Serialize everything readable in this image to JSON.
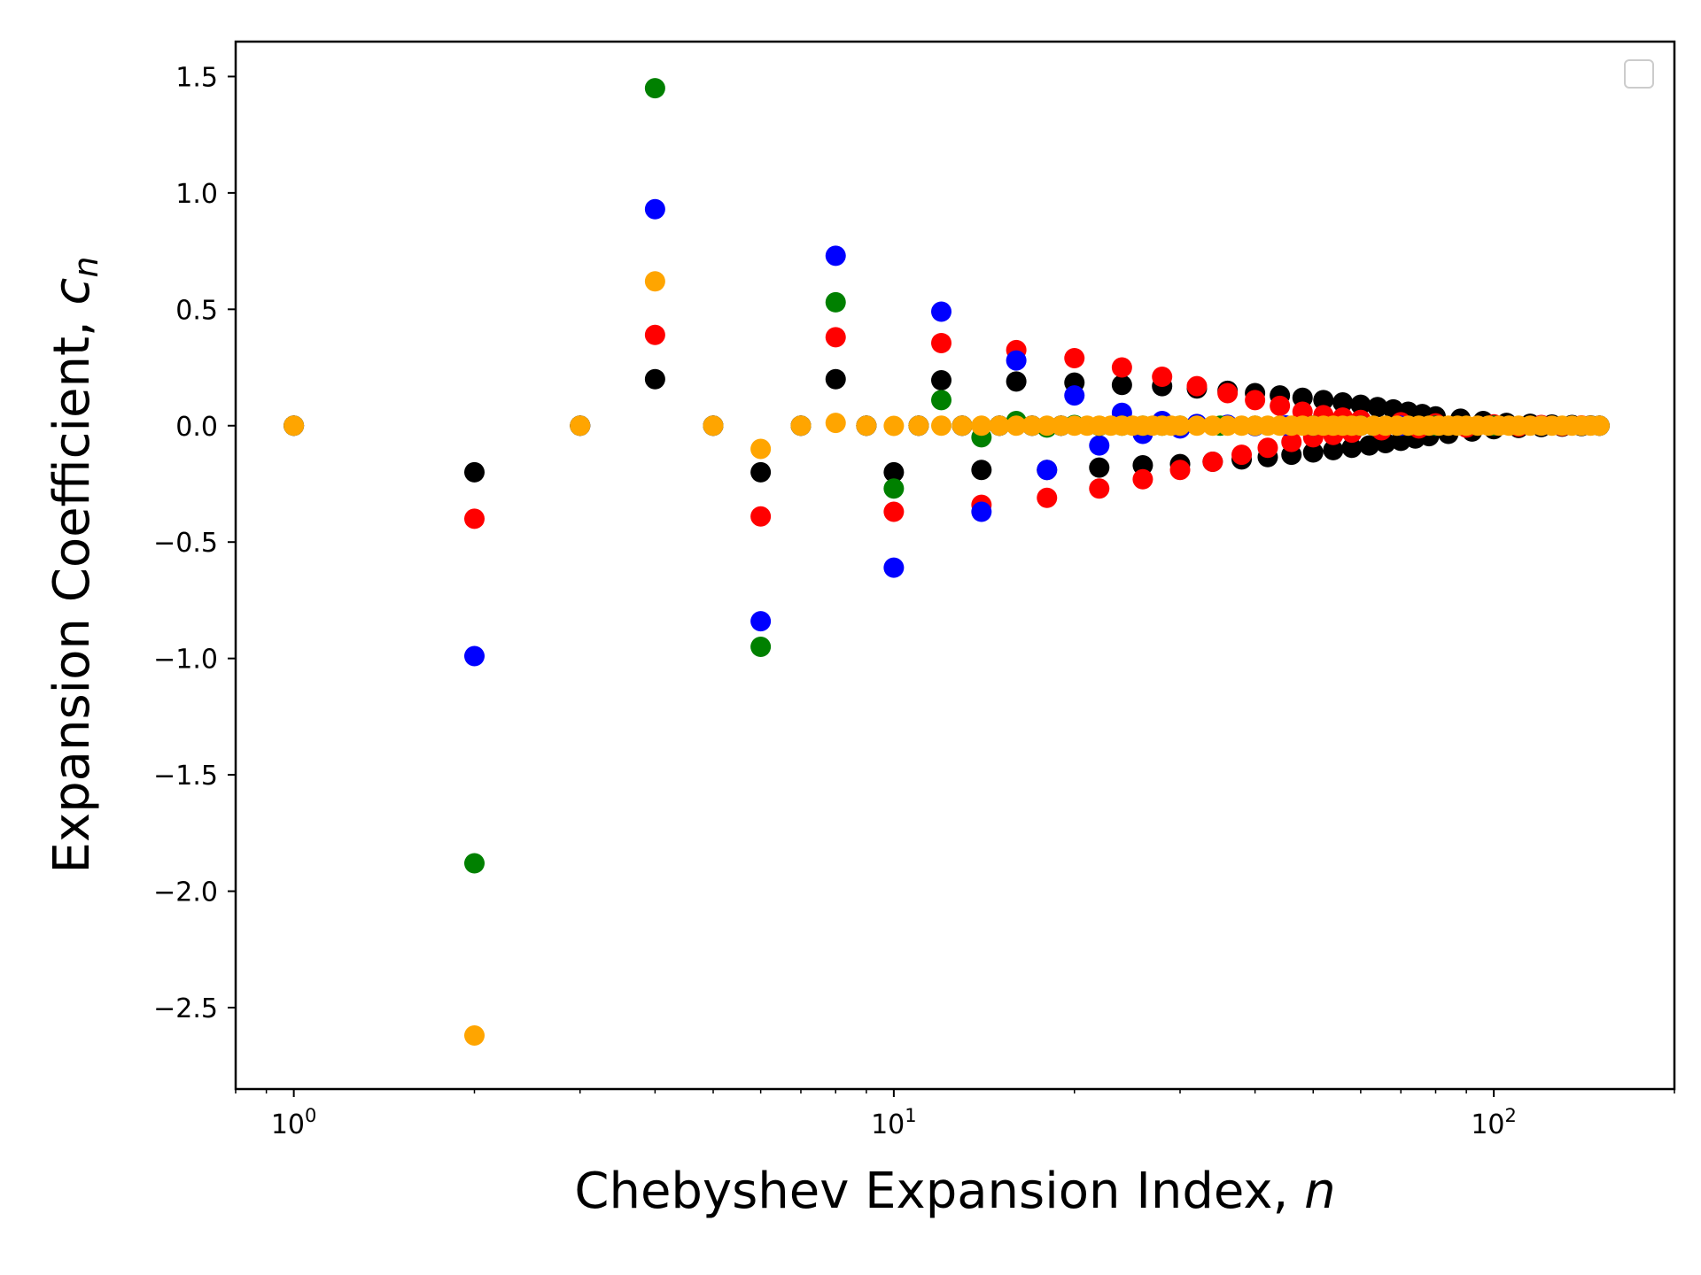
{
  "chart_data": {
    "type": "scatter",
    "title": "",
    "xlabel": "Chebyshev Expansion Index, ",
    "xlabel_var": "n",
    "ylabel": "Expansion Coefficient, ",
    "ylabel_var": "c",
    "ylabel_sub": "n",
    "xscale": "log",
    "xlim": [
      0.8,
      200
    ],
    "ylim": [
      -2.85,
      1.65
    ],
    "xticks": [
      {
        "value": 1,
        "base": "10",
        "exp": "0"
      },
      {
        "value": 10,
        "base": "10",
        "exp": "1"
      },
      {
        "value": 100,
        "base": "10",
        "exp": "2"
      }
    ],
    "yticks": [
      {
        "value": 1.5,
        "label": "1.5"
      },
      {
        "value": 1.0,
        "label": "1.0"
      },
      {
        "value": 0.5,
        "label": "0.5"
      },
      {
        "value": 0.0,
        "label": "0.0"
      },
      {
        "value": -0.5,
        "label": "−0.5"
      },
      {
        "value": -1.0,
        "label": "−1.0"
      },
      {
        "value": -1.5,
        "label": "−1.5"
      },
      {
        "value": -2.0,
        "label": "−2.0"
      },
      {
        "value": -2.5,
        "label": "−2.5"
      }
    ],
    "legend": "top-right, empty",
    "grid": false,
    "series": [
      {
        "color": "#000000",
        "x": [
          1,
          2,
          3,
          4,
          5,
          6,
          7,
          8,
          9,
          10,
          11,
          12,
          13,
          14,
          15,
          16,
          17,
          18,
          19,
          20,
          22,
          24,
          26,
          28,
          30,
          32,
          34,
          36,
          38,
          40,
          42,
          44,
          46,
          48,
          50,
          52,
          54,
          56,
          58,
          60,
          62,
          64,
          66,
          68,
          70,
          72,
          74,
          76,
          78,
          80,
          84,
          88,
          92,
          96,
          100,
          105,
          110,
          115,
          120,
          125,
          130,
          135,
          140,
          145,
          150
        ],
        "y": [
          0,
          -0.2,
          0,
          0.2,
          0,
          -0.2,
          0,
          0.2,
          0,
          -0.2,
          0,
          0.195,
          0,
          -0.19,
          0,
          0.19,
          0,
          -0.19,
          0,
          0.185,
          -0.18,
          0.175,
          -0.17,
          0.17,
          -0.165,
          0.16,
          -0.155,
          0.15,
          -0.145,
          0.14,
          -0.135,
          0.13,
          -0.125,
          0.12,
          -0.115,
          0.11,
          -0.105,
          0.1,
          -0.095,
          0.09,
          -0.085,
          0.08,
          -0.075,
          0.07,
          -0.065,
          0.06,
          -0.055,
          0.05,
          -0.045,
          0.04,
          -0.035,
          0.03,
          -0.025,
          0.02,
          -0.015,
          0.012,
          -0.01,
          0.008,
          -0.006,
          0.005,
          -0.004,
          0.003,
          -0.002,
          0.001,
          0
        ]
      },
      {
        "color": "#ff0000",
        "x": [
          1,
          2,
          3,
          4,
          5,
          6,
          7,
          8,
          9,
          10,
          11,
          12,
          13,
          14,
          15,
          16,
          17,
          18,
          19,
          20,
          22,
          24,
          26,
          28,
          30,
          32,
          34,
          36,
          38,
          40,
          42,
          44,
          46,
          48,
          50,
          52,
          54,
          56,
          58,
          60,
          65,
          70,
          75,
          80,
          90,
          100,
          110,
          120,
          130,
          140,
          150
        ],
        "y": [
          0,
          -0.4,
          0,
          0.39,
          0,
          -0.39,
          0,
          0.38,
          0,
          -0.37,
          0,
          0.355,
          0,
          -0.34,
          0,
          0.325,
          0,
          -0.31,
          0,
          0.29,
          -0.27,
          0.25,
          -0.23,
          0.21,
          -0.19,
          0.17,
          -0.155,
          0.14,
          -0.125,
          0.11,
          -0.095,
          0.085,
          -0.07,
          0.06,
          -0.05,
          0.045,
          -0.04,
          0.035,
          -0.03,
          0.025,
          -0.02,
          0.015,
          -0.012,
          0.01,
          -0.008,
          0.006,
          -0.004,
          0.003,
          -0.002,
          0.001,
          0
        ]
      },
      {
        "color": "#0000ff",
        "x": [
          1,
          2,
          3,
          4,
          5,
          6,
          7,
          8,
          9,
          10,
          11,
          12,
          13,
          14,
          15,
          16,
          17,
          18,
          19,
          20,
          22,
          24,
          26,
          28,
          30,
          32,
          36,
          40,
          45,
          50,
          60,
          70,
          80,
          100,
          120,
          150
        ],
        "y": [
          0,
          -0.99,
          0,
          0.93,
          0,
          -0.84,
          0,
          0.73,
          0,
          -0.61,
          0,
          0.49,
          0,
          -0.37,
          0,
          0.28,
          0,
          -0.19,
          0,
          0.13,
          -0.085,
          0.055,
          -0.035,
          0.02,
          -0.012,
          0.007,
          0.004,
          -0.002,
          0.001,
          0,
          0,
          0,
          0,
          0,
          0,
          0
        ]
      },
      {
        "color": "#008000",
        "x": [
          1,
          2,
          3,
          4,
          5,
          6,
          7,
          8,
          9,
          10,
          11,
          12,
          13,
          14,
          15,
          16,
          17,
          18,
          19,
          20,
          22,
          24,
          26,
          28,
          30,
          35,
          40,
          50,
          60,
          80,
          100,
          150
        ],
        "y": [
          0,
          -1.88,
          0,
          1.45,
          0,
          -0.95,
          0,
          0.53,
          0,
          -0.27,
          0,
          0.11,
          0,
          -0.05,
          0,
          0.02,
          0,
          -0.008,
          0,
          0.003,
          -0.001,
          0,
          0,
          0,
          0,
          0,
          0,
          0,
          0,
          0,
          0,
          0
        ]
      },
      {
        "color": "#ffa500",
        "x": [
          1,
          2,
          3,
          4,
          5,
          6,
          7,
          8,
          9,
          10,
          11,
          12,
          13,
          14,
          15,
          16,
          17,
          18,
          19,
          20,
          21,
          22,
          23,
          24,
          25,
          26,
          27,
          28,
          29,
          30,
          32,
          34,
          36,
          38,
          40,
          42,
          44,
          46,
          48,
          50,
          52,
          54,
          56,
          58,
          60,
          63,
          66,
          69,
          72,
          75,
          78,
          81,
          84,
          87,
          90,
          94,
          98,
          102,
          106,
          110,
          115,
          120,
          125,
          130,
          135,
          140,
          145,
          150
        ],
        "y": [
          0,
          -2.62,
          0,
          0.62,
          0,
          -0.1,
          0,
          0.012,
          0,
          -0.001,
          0,
          0,
          0,
          0,
          0,
          0,
          0,
          0,
          0,
          0,
          0,
          0,
          0,
          0,
          0,
          0,
          0,
          0,
          0,
          0,
          0,
          0,
          0,
          0,
          0,
          0,
          0,
          0,
          0,
          0,
          0,
          0,
          0,
          0,
          0,
          0,
          0,
          0,
          0,
          0,
          0,
          0,
          0,
          0,
          0,
          0,
          0,
          0,
          0,
          0,
          0,
          0,
          0,
          0,
          0,
          0,
          0,
          0
        ]
      }
    ]
  }
}
